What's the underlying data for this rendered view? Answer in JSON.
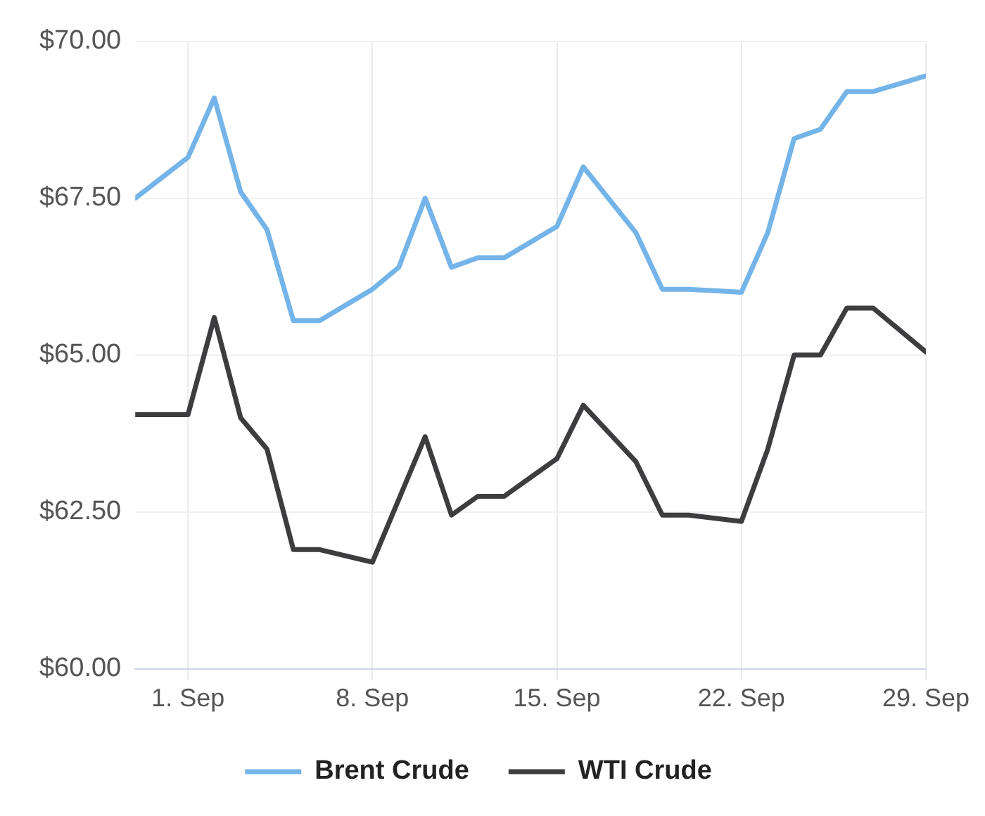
{
  "chart_data": {
    "type": "line",
    "x": [
      "--08-30",
      "--09-01",
      "--09-02",
      "--09-03",
      "--09-04",
      "--09-05",
      "--09-06",
      "--09-08",
      "--09-09",
      "--09-10",
      "--09-11",
      "--09-12",
      "--09-13",
      "--09-15",
      "--09-16",
      "--09-18",
      "--09-19",
      "--09-20",
      "--09-22",
      "--09-23",
      "--09-24",
      "--09-25",
      "--09-26",
      "--09-27",
      "--09-29"
    ],
    "series": [
      {
        "name": "Brent Crude",
        "color": "#74b4e8",
        "values": [
          67.5,
          68.15,
          69.1,
          67.6,
          67.0,
          65.55,
          65.55,
          66.05,
          66.4,
          67.5,
          66.4,
          66.55,
          66.55,
          67.05,
          68.0,
          66.95,
          66.05,
          66.05,
          66.0,
          66.95,
          68.45,
          68.6,
          69.2,
          69.2,
          69.45
        ]
      },
      {
        "name": "WTI Crude",
        "color": "#3d3d40",
        "values": [
          64.05,
          64.05,
          65.6,
          64.0,
          63.5,
          61.9,
          61.9,
          61.7,
          62.7,
          63.7,
          62.45,
          62.75,
          62.75,
          63.35,
          64.2,
          63.3,
          62.45,
          62.45,
          62.35,
          63.5,
          65.0,
          65.0,
          65.75,
          65.75,
          65.05
        ]
      }
    ],
    "xlim": [
      "--08-30",
      "--09-29"
    ],
    "xticks": [
      {
        "value": "--09-01",
        "label": "1. Sep"
      },
      {
        "value": "--09-08",
        "label": "8. Sep"
      },
      {
        "value": "--09-15",
        "label": "15. Sep"
      },
      {
        "value": "--09-22",
        "label": "22. Sep"
      },
      {
        "value": "--09-29",
        "label": "29. Sep"
      }
    ],
    "ylim": [
      60,
      70
    ],
    "yticks": [
      {
        "value": 60,
        "label": "$60.00"
      },
      {
        "value": 62.5,
        "label": "$62.50"
      },
      {
        "value": 65,
        "label": "$65.00"
      },
      {
        "value": 67.5,
        "label": "$67.50"
      },
      {
        "value": 70,
        "label": "$70.00"
      }
    ],
    "grid": true,
    "legend": "bottom",
    "marker": "none",
    "line_style": "solid"
  }
}
